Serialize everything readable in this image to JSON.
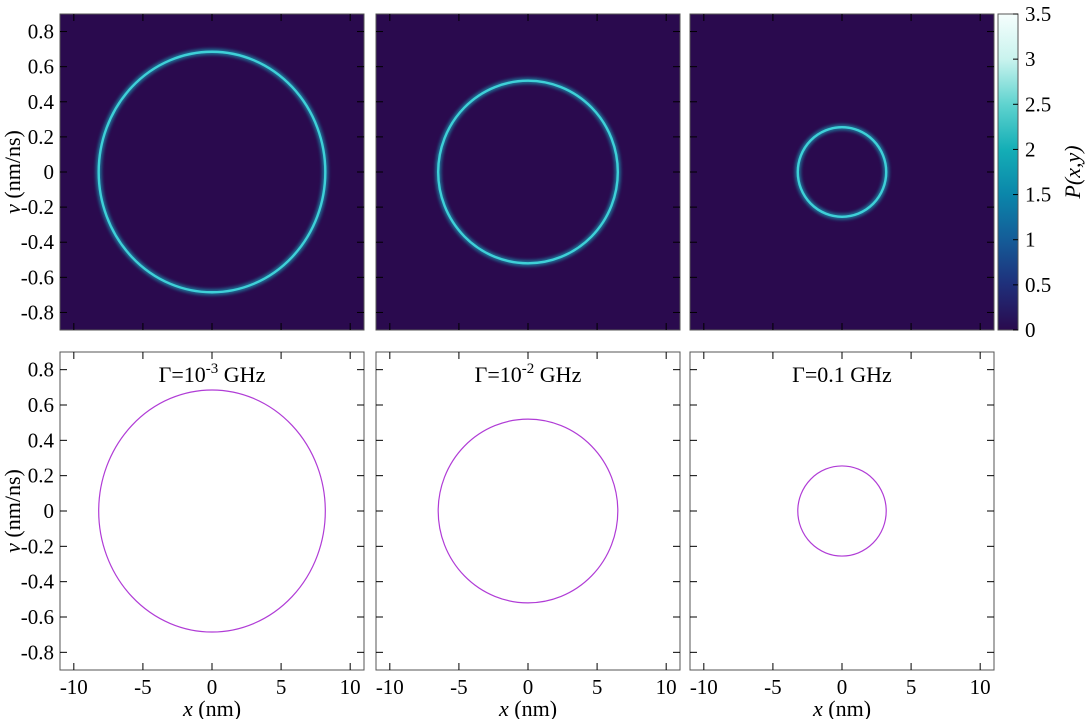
{
  "chart_data": {
    "type": "heatmap",
    "colorbar": {
      "label": "P(x,y)",
      "range": [
        0,
        3.5
      ],
      "ticks": [
        "0",
        "0.5",
        "1",
        "1.5",
        "2",
        "2.5",
        "3",
        "3.5"
      ],
      "colors": [
        "#2a0a4e",
        "#1f2f7a",
        "#145c98",
        "#0b86aa",
        "#14aeb6",
        "#5fd3cf",
        "#c9f3ee",
        "#f6fefd"
      ]
    },
    "xlabel": "x (nm)",
    "ylabel": "v (nm/ns)",
    "xlim": [
      -11,
      11
    ],
    "ylim": [
      -0.9,
      0.9
    ],
    "xticks": [
      "-10",
      "-5",
      "0",
      "5",
      "10"
    ],
    "yticks": [
      "-0.8",
      "-0.6",
      "-0.4",
      "-0.2",
      "0",
      "0.2",
      "0.4",
      "0.6",
      "0.8"
    ],
    "grid": false,
    "heatmap_background": "#2a0a4e",
    "ring_color": "#3fd0d8",
    "orbit_color": "#b03cd6",
    "panels": [
      {
        "title_base": "Γ=10",
        "title_exp": "-3",
        "title_unit": " GHz",
        "x_amplitude": 8.2,
        "v_amplitude": 0.685
      },
      {
        "title_base": "Γ=10",
        "title_exp": "-2",
        "title_unit": " GHz",
        "x_amplitude": 6.5,
        "v_amplitude": 0.52
      },
      {
        "title_base": "Γ=0.1 GHz",
        "title_exp": "",
        "title_unit": "",
        "x_amplitude": 3.2,
        "v_amplitude": 0.255
      }
    ]
  }
}
